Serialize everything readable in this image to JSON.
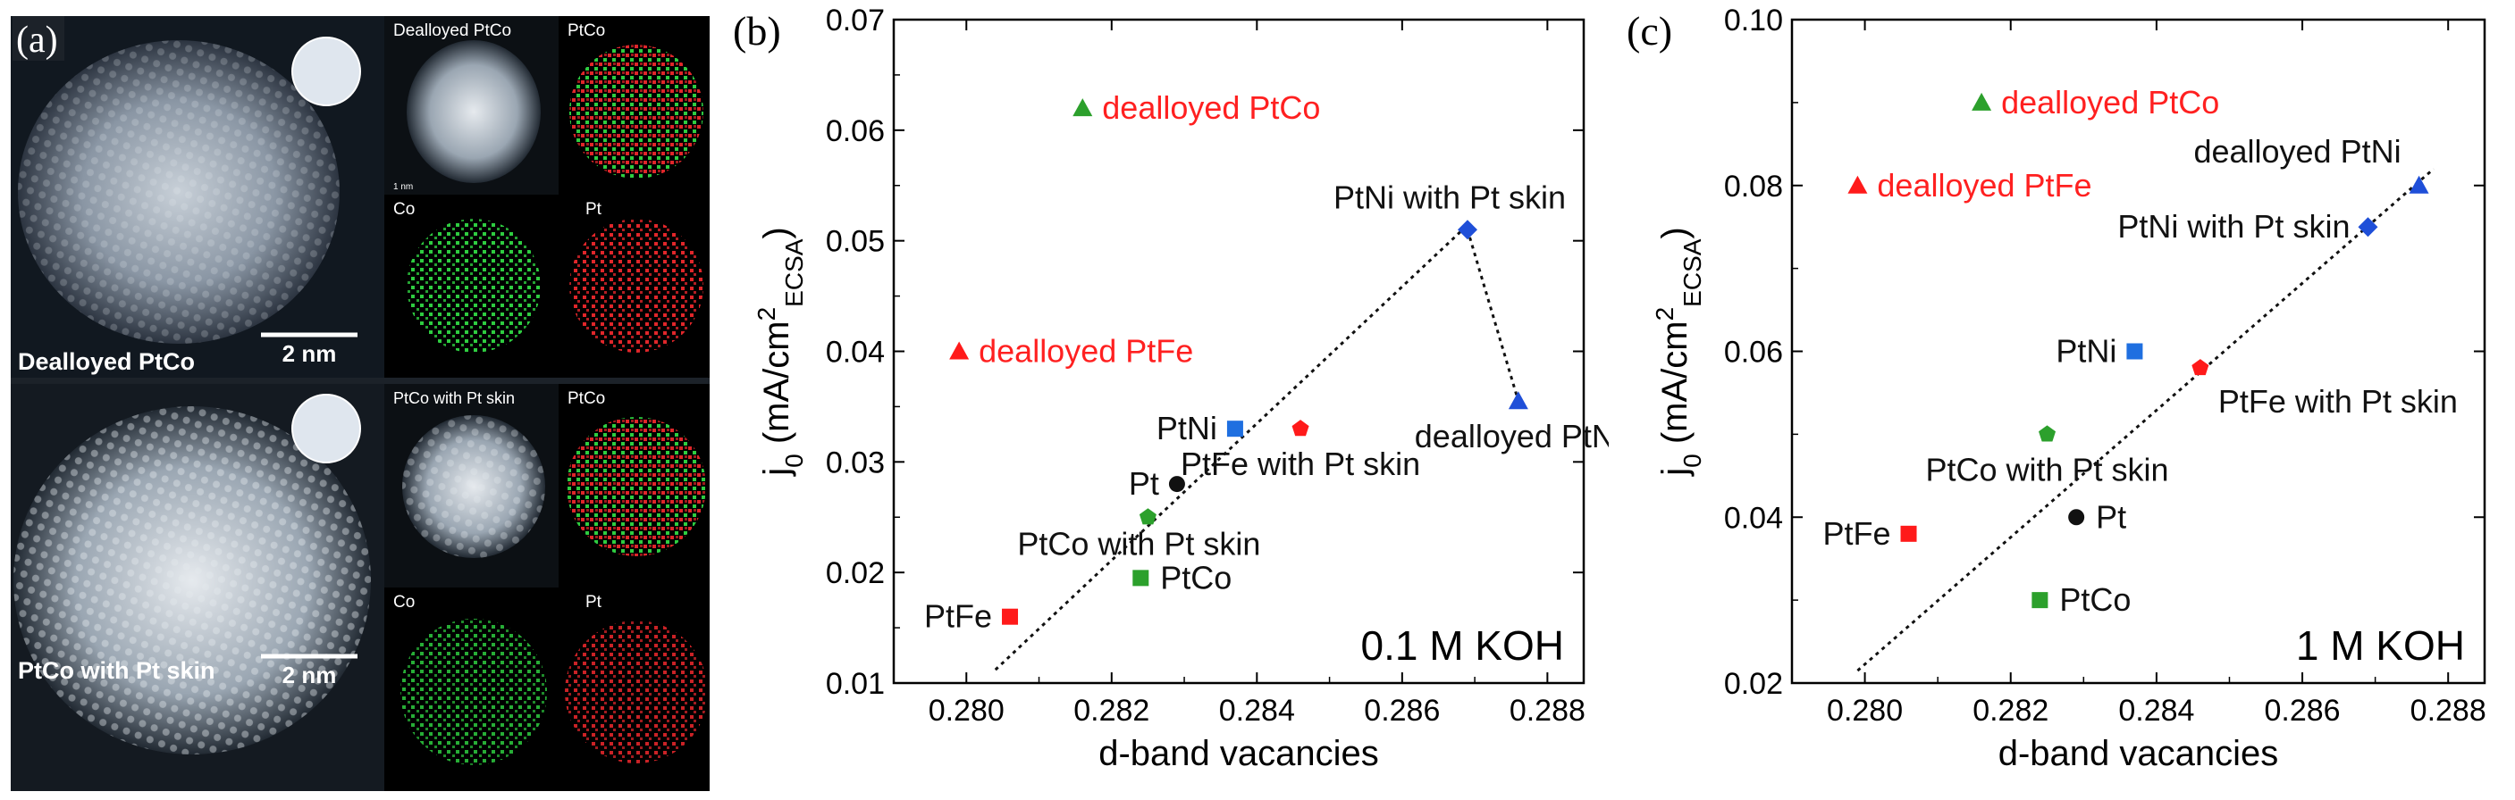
{
  "panel_a": {
    "label": "(a)",
    "images": [
      {
        "title": "Dealloyed PtCo",
        "scale_label": "2 nm"
      },
      {
        "title": "PtCo with Pt skin",
        "scale_label": "2 nm"
      }
    ],
    "small_labels": {
      "top_haadf": "Dealloyed PtCo",
      "top_map_ptco": "PtCo",
      "top_map_co": "Co",
      "top_map_pt": "Pt",
      "bottom_haadf": "PtCo with Pt skin",
      "bottom_map_ptco": "PtCo",
      "bottom_map_co": "Co",
      "bottom_map_pt": "Pt",
      "small_scale": "1 nm"
    },
    "colors": {
      "co": "#2ecc40",
      "pt": "#e0262a"
    }
  },
  "chart_data": [
    {
      "type": "scatter",
      "panel_label": "(b)",
      "annotation": "0.1 M KOH",
      "xlabel": "d-band vacancies",
      "ylabel": {
        "base": "j",
        "sub0": "0",
        "mid": " (mA/cm",
        "sup": "2",
        "sub": "ECSA",
        "end": ")"
      },
      "xlim": [
        0.279,
        0.2885
      ],
      "ylim": [
        0.01,
        0.07
      ],
      "xticks": [
        "0.280",
        "0.282",
        "0.284",
        "0.286",
        "0.288"
      ],
      "yticks": [
        "0.01",
        "0.02",
        "0.03",
        "0.04",
        "0.05",
        "0.06",
        "0.07"
      ],
      "points": [
        {
          "label": "dealloyed PtCo",
          "x": 0.2816,
          "y": 0.062,
          "marker": "triangle",
          "color": "#2ca02c",
          "label_color": "#ff2020",
          "label_pos": "right"
        },
        {
          "label": "dealloyed PtFe",
          "x": 0.2799,
          "y": 0.04,
          "marker": "triangle",
          "color": "#ff1a1a",
          "label_color": "#ff2020",
          "label_pos": "right"
        },
        {
          "label": "PtNi with Pt skin",
          "x": 0.2869,
          "y": 0.051,
          "marker": "diamond",
          "color": "#1f4fd8",
          "label_color": "#111111",
          "label_pos": "above"
        },
        {
          "label": "dealloyed PtNi",
          "x": 0.2876,
          "y": 0.0355,
          "marker": "triangle",
          "color": "#1f4fd8",
          "label_color": "#111111",
          "label_pos": "below"
        },
        {
          "label": "PtFe with Pt skin",
          "x": 0.2846,
          "y": 0.033,
          "marker": "pentagon",
          "color": "#ff1a1a",
          "label_color": "#111111",
          "label_pos": "below"
        },
        {
          "label": "PtNi",
          "x": 0.2837,
          "y": 0.033,
          "marker": "square",
          "color": "#1f6fe0",
          "label_color": "#111111",
          "label_pos": "left"
        },
        {
          "label": "Pt",
          "x": 0.2829,
          "y": 0.028,
          "marker": "circle",
          "color": "#111111",
          "label_color": "#111111",
          "label_pos": "left"
        },
        {
          "label": "PtCo with Pt skin",
          "x": 0.2825,
          "y": 0.025,
          "marker": "pentagon",
          "color": "#2ca02c",
          "label_color": "#111111",
          "label_pos": "below-left"
        },
        {
          "label": "PtCo",
          "x": 0.2824,
          "y": 0.0195,
          "marker": "square",
          "color": "#2ca02c",
          "label_color": "#111111",
          "label_pos": "right"
        },
        {
          "label": "PtFe",
          "x": 0.2806,
          "y": 0.016,
          "marker": "square",
          "color": "#ff1a1a",
          "label_color": "#111111",
          "label_pos": "left"
        }
      ],
      "fit_lines": [
        {
          "x1": 0.2804,
          "y1": 0.0112,
          "x2": 0.2868,
          "y2": 0.0508
        },
        {
          "x1": 0.2869,
          "y1": 0.051,
          "x2": 0.2876,
          "y2": 0.0355
        }
      ]
    },
    {
      "type": "scatter",
      "panel_label": "(c)",
      "annotation": "1 M KOH",
      "xlabel": "d-band vacancies",
      "ylabel": {
        "base": "j",
        "sub0": "0",
        "mid": " (mA/cm",
        "sup": "2",
        "sub": "ECSA",
        "end": ")"
      },
      "xlim": [
        0.279,
        0.2885
      ],
      "ylim": [
        0.02,
        0.1
      ],
      "xticks": [
        "0.280",
        "0.282",
        "0.284",
        "0.286",
        "0.288"
      ],
      "yticks": [
        "0.02",
        "0.04",
        "0.06",
        "0.08",
        "0.10"
      ],
      "points": [
        {
          "label": "dealloyed PtCo",
          "x": 0.2816,
          "y": 0.09,
          "marker": "triangle",
          "color": "#2ca02c",
          "label_color": "#ff2020",
          "label_pos": "right"
        },
        {
          "label": "dealloyed PtFe",
          "x": 0.2799,
          "y": 0.08,
          "marker": "triangle",
          "color": "#ff1a1a",
          "label_color": "#ff2020",
          "label_pos": "right"
        },
        {
          "label": "dealloyed PtNi",
          "x": 0.2876,
          "y": 0.08,
          "marker": "triangle",
          "color": "#1f4fd8",
          "label_color": "#111111",
          "label_pos": "above-left"
        },
        {
          "label": "PtNi with Pt skin",
          "x": 0.2869,
          "y": 0.075,
          "marker": "diamond",
          "color": "#1f4fd8",
          "label_color": "#111111",
          "label_pos": "left"
        },
        {
          "label": "PtNi",
          "x": 0.2837,
          "y": 0.06,
          "marker": "square",
          "color": "#1f6fe0",
          "label_color": "#111111",
          "label_pos": "left"
        },
        {
          "label": "PtFe with Pt skin",
          "x": 0.2846,
          "y": 0.058,
          "marker": "pentagon",
          "color": "#ff1a1a",
          "label_color": "#111111",
          "label_pos": "below-right"
        },
        {
          "label": "PtCo with Pt skin",
          "x": 0.2825,
          "y": 0.05,
          "marker": "pentagon",
          "color": "#2ca02c",
          "label_color": "#111111",
          "label_pos": "below"
        },
        {
          "label": "Pt",
          "x": 0.2829,
          "y": 0.04,
          "marker": "circle",
          "color": "#111111",
          "label_color": "#111111",
          "label_pos": "right"
        },
        {
          "label": "PtFe",
          "x": 0.2806,
          "y": 0.038,
          "marker": "square",
          "color": "#ff1a1a",
          "label_color": "#111111",
          "label_pos": "left"
        },
        {
          "label": "PtCo",
          "x": 0.2824,
          "y": 0.03,
          "marker": "square",
          "color": "#2ca02c",
          "label_color": "#111111",
          "label_pos": "right"
        }
      ],
      "fit_lines": [
        {
          "x1": 0.2799,
          "y1": 0.0215,
          "x2": 0.2878,
          "y2": 0.082
        }
      ]
    }
  ]
}
